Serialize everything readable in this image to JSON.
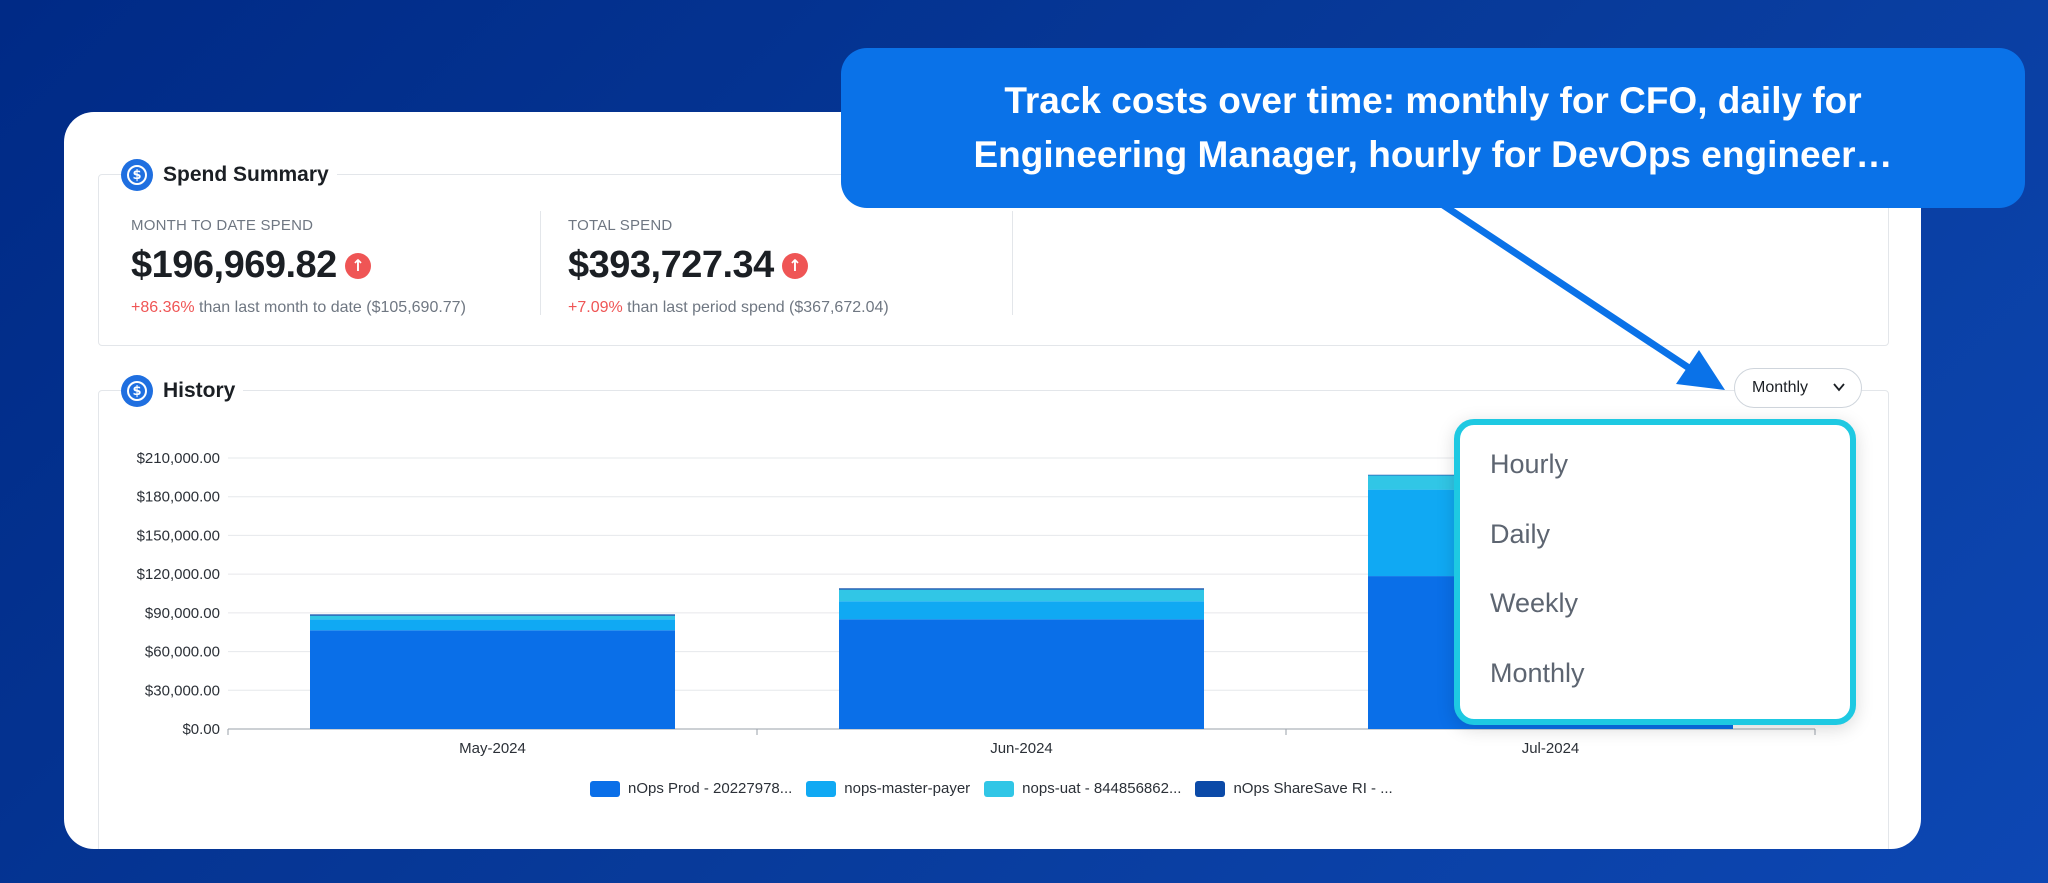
{
  "callout": {
    "line1": "Track costs over time: monthly for CFO, daily for",
    "line2": "Engineering Manager, hourly for DevOps engineer…"
  },
  "spend_summary": {
    "title": "Spend Summary",
    "mtd": {
      "label": "MONTH TO DATE SPEND",
      "value": "$196,969.82",
      "change_pct": "+86.36%",
      "change_text": " than last month to date ($105,690.77)"
    },
    "total": {
      "label": "TOTAL SPEND",
      "value": "$393,727.34",
      "change_pct": "+7.09%",
      "change_text": " than last period spend ($367,672.04)"
    }
  },
  "history": {
    "title": "History",
    "granularity_selected": "Monthly",
    "granularity_options": [
      "Hourly",
      "Daily",
      "Weekly",
      "Monthly"
    ]
  },
  "colors": {
    "accent": "#1f6fe0",
    "negative": "#ef5555",
    "dropdown_border": "#1ec9e2"
  },
  "chart_data": {
    "type": "bar",
    "stacked": true,
    "categories": [
      "May-2024",
      "Jun-2024",
      "Jul-2024"
    ],
    "y_ticks": [
      "$0.00",
      "$30,000.00",
      "$60,000.00",
      "$90,000.00",
      "$120,000.00",
      "$150,000.00",
      "$180,000.00",
      "$210,000.00"
    ],
    "ylim": [
      0,
      210000
    ],
    "grid": true,
    "legend_position": "bottom",
    "series": [
      {
        "name": "nOps Prod - 20227978...",
        "color": "#0a6fe8",
        "values": [
          76500,
          85000,
          118500
        ]
      },
      {
        "name": "nops-master-payer",
        "color": "#10a9f3",
        "values": [
          8500,
          14000,
          67000
        ]
      },
      {
        "name": "nops-uat - 844856862...",
        "color": "#31c6e6",
        "values": [
          2800,
          9000,
          11000
        ]
      },
      {
        "name": "nOps ShareSave RI - ...",
        "color": "#0b4aa8",
        "values": [
          1000,
          1000,
          500
        ]
      }
    ]
  }
}
